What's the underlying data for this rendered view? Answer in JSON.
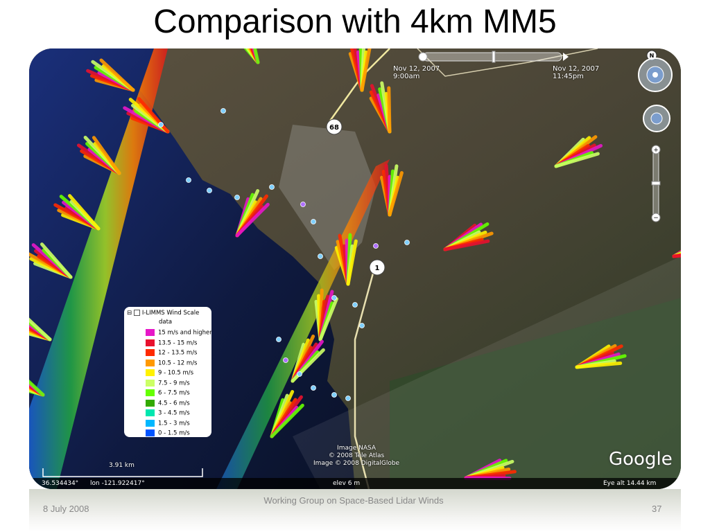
{
  "slide": {
    "title": "Comparison with 4km MM5",
    "footer_date": "8 July 2008",
    "footer_center": "Working Group on Space-Based Lidar Winds",
    "page_number": "37"
  },
  "map": {
    "time_slider": {
      "start_date": "Nov 12, 2007",
      "start_time": "9:00am",
      "end_date": "Nov 12, 2007",
      "end_time": "11:45pm"
    },
    "road_labels": {
      "highway_68": "68",
      "highway_1": "1"
    },
    "legend": {
      "title": "I-LIMMS Wind Scale",
      "subtitle": "data",
      "items": [
        {
          "label": "15 m/s and higher",
          "color": "#e617c8"
        },
        {
          "label": "13.5 - 15  m/s",
          "color": "#e8112e"
        },
        {
          "label": "12 - 13.5 m/s",
          "color": "#ff2a00"
        },
        {
          "label": "10.5 - 12 m/s",
          "color": "#ff9900"
        },
        {
          "label": "9 - 10.5 m/s",
          "color": "#fff200"
        },
        {
          "label": "7.5 - 9 m/s",
          "color": "#ccff66"
        },
        {
          "label": "6 - 7.5 m/s",
          "color": "#66ff00"
        },
        {
          "label": "4.5 - 6 m/s",
          "color": "#33aa00"
        },
        {
          "label": "3 - 4.5 m/s",
          "color": "#00e6b0"
        },
        {
          "label": "1.5 - 3 m/s",
          "color": "#00b8ff"
        },
        {
          "label": "0 - 1.5 m/s",
          "color": "#0055ff"
        }
      ]
    },
    "credits": [
      "Image NASA",
      "© 2008 Tele Atlas",
      "Image © 2008 DigitalGlobe"
    ],
    "logo": "Google",
    "scale_label": "3.91 km",
    "status": {
      "lat": "36.534434°",
      "lon": "lon -121.922417°",
      "elev": "elev    6 m",
      "eye_alt": "Eye alt    14.44 km"
    },
    "icons": {
      "look": "look-joystick-icon",
      "move": "move-joystick-icon",
      "zoom_in": "zoom-in-icon",
      "zoom_out": "zoom-out-icon",
      "north": "compass-north-icon"
    }
  }
}
